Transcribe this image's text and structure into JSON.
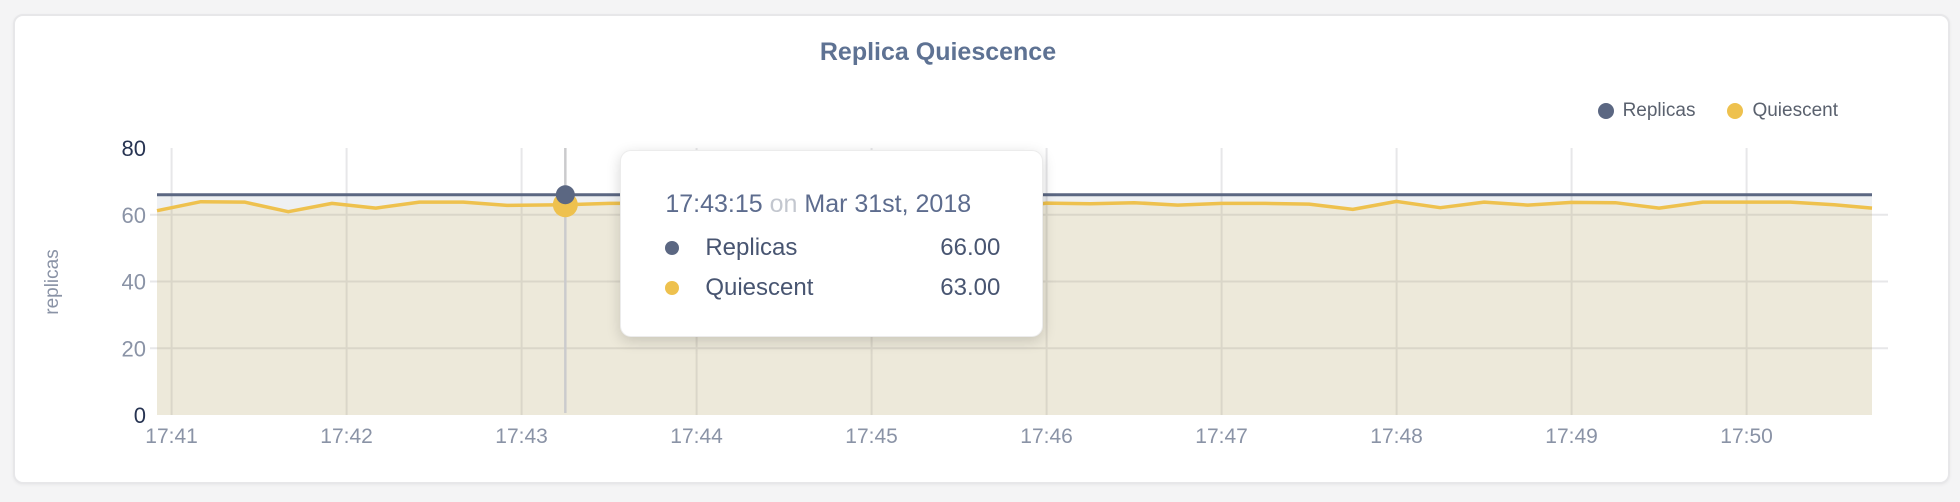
{
  "card": {
    "title": "Replica Quiescence"
  },
  "legend": {
    "items": [
      {
        "label": "Replicas",
        "color": "#5b6782"
      },
      {
        "label": "Quiescent",
        "color": "#eec14e"
      }
    ]
  },
  "tooltip": {
    "time": "17:43:15",
    "preposition": "on",
    "date": "Mar 31st, 2018",
    "rows": [
      {
        "label": "Replicas",
        "value": "66.00",
        "color": "#5b6782"
      },
      {
        "label": "Quiescent",
        "value": "63.00",
        "color": "#eec14e"
      }
    ]
  },
  "chart_data": {
    "type": "line",
    "title": "Replica Quiescence",
    "xlabel": "",
    "ylabel": "replicas",
    "ylim": [
      0,
      80
    ],
    "yticks": [
      0,
      20,
      40,
      60,
      80
    ],
    "xticks": [
      "17:41",
      "17:42",
      "17:43",
      "17:44",
      "17:45",
      "17:46",
      "17:47",
      "17:48",
      "17:49",
      "17:50"
    ],
    "grid": true,
    "legend_position": "top-right",
    "x_times": [
      "17:40:55",
      "17:41:10",
      "17:41:25",
      "17:41:40",
      "17:41:55",
      "17:42:10",
      "17:42:25",
      "17:42:40",
      "17:42:55",
      "17:43:15",
      "17:43:30",
      "17:43:45",
      "17:44:00",
      "17:44:15",
      "17:44:30",
      "17:44:45",
      "17:45:00",
      "17:45:15",
      "17:45:30",
      "17:45:45",
      "17:46:00",
      "17:46:15",
      "17:46:30",
      "17:46:45",
      "17:47:00",
      "17:47:15",
      "17:47:30",
      "17:47:45",
      "17:48:00",
      "17:48:15",
      "17:48:30",
      "17:48:45",
      "17:49:00",
      "17:49:15",
      "17:49:30",
      "17:49:45",
      "17:50:00",
      "17:50:15",
      "17:50:30",
      "17:50:43"
    ],
    "series": [
      {
        "name": "Replicas",
        "color": "#5b6782",
        "fill": "rgba(91,103,130,0.10)",
        "line_width": 3,
        "values": [
          66,
          66,
          66,
          66,
          66,
          66,
          66,
          66,
          66,
          66,
          66,
          66,
          66,
          66,
          66,
          66,
          66,
          66,
          66,
          66,
          66,
          66,
          66,
          66,
          66,
          66,
          66,
          66,
          66,
          66,
          66,
          66,
          66,
          66,
          66,
          66,
          66,
          66,
          66,
          66
        ]
      },
      {
        "name": "Quiescent",
        "color": "#eec14e",
        "fill": "rgba(238,193,78,0.15)",
        "line_width": 3.5,
        "values": [
          61.2,
          63.9,
          63.8,
          60.9,
          63.4,
          62.0,
          63.8,
          63.8,
          62.8,
          63.0,
          63.4,
          63.5,
          63.2,
          63.6,
          62.9,
          63.4,
          63.3,
          63.5,
          62.8,
          61.9,
          63.5,
          63.3,
          63.6,
          62.9,
          63.4,
          63.4,
          63.2,
          61.6,
          64.0,
          62.1,
          63.8,
          62.9,
          63.7,
          63.6,
          62.0,
          63.8,
          63.8,
          63.8,
          63.0,
          62.0
        ]
      }
    ],
    "hover": {
      "time": "17:43:15",
      "replicas": 66.0,
      "quiescent": 63.0
    },
    "axis_colors": {
      "normal": "#8a93a6",
      "extreme": "#273452"
    },
    "grid_color": "#e7e7e9",
    "crosshair_color": "#cbcbcd"
  }
}
